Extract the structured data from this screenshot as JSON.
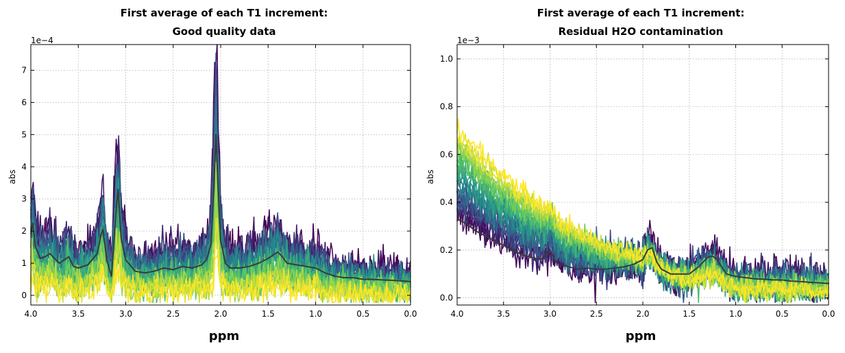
{
  "chart_data": [
    {
      "id": "left",
      "type": "line",
      "title_lines": [
        "First average of each T1 increment:",
        "Good quality data"
      ],
      "xlabel": "ppm",
      "ylabel": "abs",
      "exponent_label": "1e−4",
      "xlim": [
        4.0,
        0.0
      ],
      "ylim": [
        -0.3,
        7.8
      ],
      "xticks": [
        4.0,
        3.5,
        3.0,
        2.5,
        2.0,
        1.5,
        1.0,
        0.5,
        0.0
      ],
      "xtick_labels": [
        "4.0",
        "3.5",
        "3.0",
        "2.5",
        "2.0",
        "1.5",
        "1.0",
        "0.5",
        "0.0"
      ],
      "yticks": [
        0,
        1,
        2,
        3,
        4,
        5,
        6,
        7
      ],
      "ytick_labels": [
        "0",
        "1",
        "2",
        "3",
        "4",
        "5",
        "6",
        "7"
      ],
      "series_count": 24,
      "colormap": [
        "#440154",
        "#3b528b",
        "#21918c",
        "#5ec962",
        "#fde725"
      ],
      "mean_color": "#3a3a3a",
      "mean_curve": {
        "x": [
          4.0,
          3.98,
          3.95,
          3.9,
          3.85,
          3.8,
          3.7,
          3.6,
          3.55,
          3.5,
          3.4,
          3.3,
          3.26,
          3.24,
          3.2,
          3.15,
          3.1,
          3.08,
          3.05,
          3.0,
          2.9,
          2.8,
          2.7,
          2.6,
          2.5,
          2.4,
          2.3,
          2.2,
          2.15,
          2.1,
          2.07,
          2.05,
          2.03,
          2.0,
          1.95,
          1.9,
          1.8,
          1.7,
          1.6,
          1.5,
          1.45,
          1.4,
          1.35,
          1.3,
          1.2,
          1.1,
          1.0,
          0.9,
          0.8,
          0.7,
          0.6,
          0.5,
          0.4,
          0.3,
          0.2,
          0.1,
          0.0
        ],
        "y": [
          1.9,
          2.25,
          1.5,
          1.15,
          1.2,
          1.3,
          1.0,
          1.2,
          0.9,
          0.85,
          0.95,
          1.3,
          1.9,
          2.05,
          1.1,
          0.6,
          2.7,
          3.3,
          1.8,
          1.1,
          0.75,
          0.7,
          0.75,
          0.85,
          0.8,
          0.9,
          0.85,
          0.95,
          1.1,
          1.6,
          3.5,
          5.0,
          3.6,
          1.7,
          1.0,
          0.85,
          0.85,
          0.9,
          1.0,
          1.15,
          1.25,
          1.35,
          1.2,
          1.0,
          0.95,
          0.9,
          0.85,
          0.7,
          0.6,
          0.55,
          0.55,
          0.5,
          0.5,
          0.48,
          0.47,
          0.45,
          0.43
        ]
      }
    },
    {
      "id": "right",
      "type": "line",
      "title_lines": [
        "First average of each T1 increment:",
        "Residual H2O contamination"
      ],
      "xlabel": "ppm",
      "ylabel": "abs",
      "exponent_label": "1e−3",
      "xlim": [
        4.0,
        0.0
      ],
      "ylim": [
        -0.03,
        1.06
      ],
      "xticks": [
        4.0,
        3.5,
        3.0,
        2.5,
        2.0,
        1.5,
        1.0,
        0.5,
        0.0
      ],
      "xtick_labels": [
        "4.0",
        "3.5",
        "3.0",
        "2.5",
        "2.0",
        "1.5",
        "1.0",
        "0.5",
        "0.0"
      ],
      "yticks": [
        0.0,
        0.2,
        0.4,
        0.6,
        0.8,
        1.0
      ],
      "ytick_labels": [
        "0.0",
        "0.2",
        "0.4",
        "0.6",
        "0.8",
        "1.0"
      ],
      "series_count": 24,
      "colormap": [
        "#440154",
        "#3b528b",
        "#21918c",
        "#5ec962",
        "#fde725"
      ],
      "mean_color": "#3a3a3a",
      "mean_curve": {
        "x": [
          4.0,
          3.9,
          3.8,
          3.7,
          3.6,
          3.5,
          3.4,
          3.3,
          3.2,
          3.1,
          3.0,
          2.95,
          2.9,
          2.8,
          2.7,
          2.6,
          2.5,
          2.4,
          2.3,
          2.2,
          2.1,
          2.0,
          1.95,
          1.9,
          1.85,
          1.8,
          1.7,
          1.6,
          1.5,
          1.4,
          1.3,
          1.25,
          1.2,
          1.1,
          1.0,
          0.9,
          0.8,
          0.7,
          0.6,
          0.5,
          0.4,
          0.3,
          0.2,
          0.1,
          0.0
        ],
        "y": [
          0.33,
          0.31,
          0.28,
          0.26,
          0.24,
          0.22,
          0.2,
          0.18,
          0.17,
          0.16,
          0.2,
          0.16,
          0.14,
          0.13,
          0.12,
          0.125,
          0.12,
          0.12,
          0.125,
          0.13,
          0.14,
          0.16,
          0.2,
          0.21,
          0.15,
          0.12,
          0.1,
          0.1,
          0.1,
          0.13,
          0.17,
          0.175,
          0.16,
          0.1,
          0.09,
          0.085,
          0.08,
          0.078,
          0.075,
          0.075,
          0.07,
          0.068,
          0.065,
          0.063,
          0.06
        ]
      }
    }
  ]
}
